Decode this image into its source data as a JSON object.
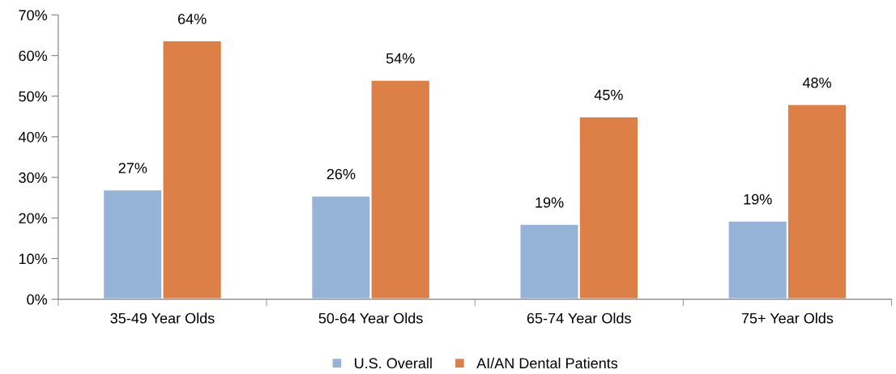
{
  "chart_data": {
    "type": "bar",
    "categories": [
      "35-49 Year Olds",
      "50-64 Year Olds",
      "65-74 Year Olds",
      "75+ Year Olds"
    ],
    "series": [
      {
        "name": "U.S. Overall",
        "color": "#95b3d7",
        "values": [
          27,
          25.5,
          18.5,
          19.3
        ],
        "value_labels": [
          "27%",
          "26%",
          "19%",
          "19%"
        ]
      },
      {
        "name": "AI/AN Dental Patients",
        "color": "#dd8047",
        "values": [
          63.7,
          54,
          45,
          48
        ],
        "value_labels": [
          "64%",
          "54%",
          "45%",
          "48%"
        ]
      }
    ],
    "ylim": [
      0,
      70
    ],
    "yticks": [
      {
        "value": 0,
        "label": "0%"
      },
      {
        "value": 10,
        "label": "10%"
      },
      {
        "value": 20,
        "label": "20%"
      },
      {
        "value": 30,
        "label": "30%"
      },
      {
        "value": 40,
        "label": "40%"
      },
      {
        "value": 50,
        "label": "50%"
      },
      {
        "value": 60,
        "label": "60%"
      },
      {
        "value": 70,
        "label": "70%"
      }
    ],
    "grid": false,
    "legend": "bottom"
  }
}
